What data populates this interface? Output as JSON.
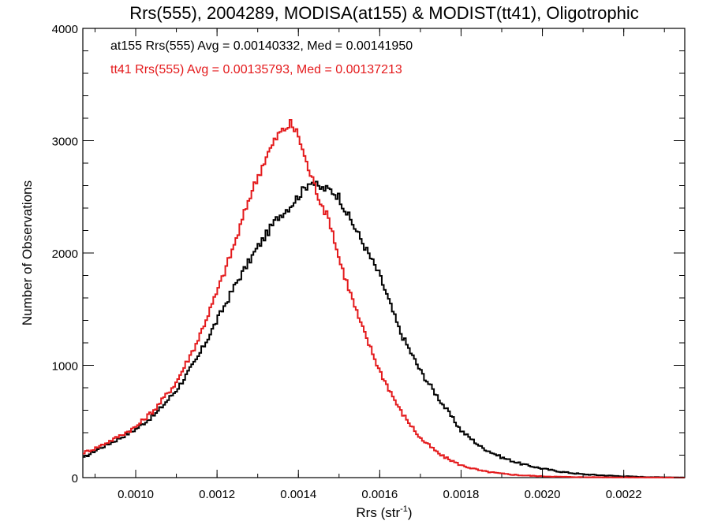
{
  "chart_data": {
    "type": "line",
    "title": "Rrs(555), 2004289, MODISA(at155) & MODIST(tt41), Oligotrophic",
    "xlabel_main": "Rrs (str",
    "xlabel_sup": "-1",
    "xlabel_close": ")",
    "ylabel": "Number of Observations",
    "xlim": [
      0.00087,
      0.00235
    ],
    "ylim": [
      0,
      4000
    ],
    "xticks": [
      {
        "value": 0.001,
        "label": "0.0010"
      },
      {
        "value": 0.0012,
        "label": "0.0012"
      },
      {
        "value": 0.0014,
        "label": "0.0014"
      },
      {
        "value": 0.0016,
        "label": "0.0016"
      },
      {
        "value": 0.0018,
        "label": "0.0018"
      },
      {
        "value": 0.002,
        "label": "0.0020"
      },
      {
        "value": 0.0022,
        "label": "0.0022"
      }
    ],
    "yticks": [
      {
        "value": 0,
        "label": "0"
      },
      {
        "value": 1000,
        "label": "1000"
      },
      {
        "value": 2000,
        "label": "2000"
      },
      {
        "value": 3000,
        "label": "3000"
      },
      {
        "value": 4000,
        "label": "4000"
      }
    ],
    "annotations": [
      {
        "text": "at155 Rrs(555) Avg = 0.00140332, Med = 0.00141950",
        "color": "#000000"
      },
      {
        "text": "tt41 Rrs(555) Avg = 0.00135793, Med = 0.00137213",
        "color": "#e41a1c"
      }
    ],
    "series": [
      {
        "color": "#000000",
        "points": [
          [
            0.00087,
            170
          ],
          [
            0.0009,
            240
          ],
          [
            0.00095,
            330
          ],
          [
            0.001,
            430
          ],
          [
            0.00105,
            570
          ],
          [
            0.0011,
            780
          ],
          [
            0.00115,
            1050
          ],
          [
            0.0012,
            1400
          ],
          [
            0.00125,
            1750
          ],
          [
            0.0013,
            2050
          ],
          [
            0.00135,
            2320
          ],
          [
            0.00138,
            2420
          ],
          [
            0.00141,
            2550
          ],
          [
            0.00143,
            2650
          ],
          [
            0.00145,
            2580
          ],
          [
            0.00148,
            2560
          ],
          [
            0.0015,
            2500
          ],
          [
            0.00152,
            2350
          ],
          [
            0.00155,
            2150
          ],
          [
            0.0016,
            1800
          ],
          [
            0.00165,
            1300
          ],
          [
            0.0017,
            950
          ],
          [
            0.00175,
            680
          ],
          [
            0.0018,
            420
          ],
          [
            0.00185,
            270
          ],
          [
            0.0019,
            180
          ],
          [
            0.00195,
            120
          ],
          [
            0.002,
            80
          ],
          [
            0.00205,
            50
          ],
          [
            0.0021,
            30
          ],
          [
            0.00215,
            20
          ],
          [
            0.0022,
            12
          ],
          [
            0.00225,
            6
          ],
          [
            0.0023,
            3
          ],
          [
            0.00235,
            1
          ]
        ]
      },
      {
        "color": "#e41a1c",
        "points": [
          [
            0.00087,
            220
          ],
          [
            0.0009,
            260
          ],
          [
            0.00095,
            350
          ],
          [
            0.001,
            450
          ],
          [
            0.00105,
            620
          ],
          [
            0.0011,
            850
          ],
          [
            0.00115,
            1200
          ],
          [
            0.0012,
            1650
          ],
          [
            0.00125,
            2150
          ],
          [
            0.00128,
            2500
          ],
          [
            0.00132,
            2850
          ],
          [
            0.00135,
            3050
          ],
          [
            0.00138,
            3150
          ],
          [
            0.0014,
            3050
          ],
          [
            0.00142,
            2800
          ],
          [
            0.00145,
            2500
          ],
          [
            0.00148,
            2250
          ],
          [
            0.0015,
            1950
          ],
          [
            0.00155,
            1400
          ],
          [
            0.0016,
            950
          ],
          [
            0.00165,
            600
          ],
          [
            0.0017,
            350
          ],
          [
            0.00175,
            200
          ],
          [
            0.0018,
            110
          ],
          [
            0.00185,
            60
          ],
          [
            0.0019,
            35
          ],
          [
            0.00195,
            20
          ],
          [
            0.002,
            12
          ],
          [
            0.00205,
            7
          ],
          [
            0.0021,
            4
          ],
          [
            0.0022,
            2
          ],
          [
            0.0023,
            1
          ],
          [
            0.00235,
            0
          ]
        ]
      }
    ]
  }
}
